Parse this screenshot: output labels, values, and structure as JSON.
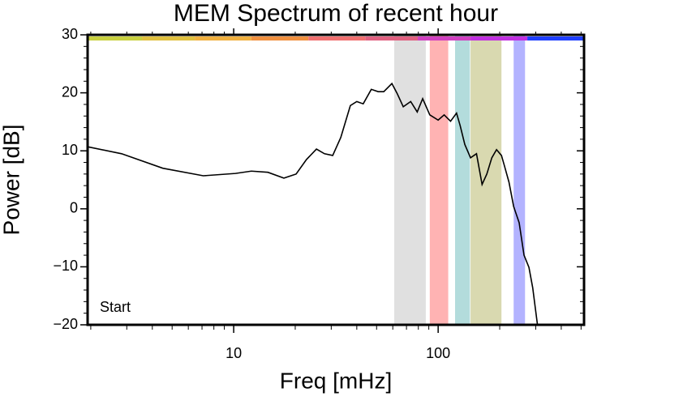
{
  "chart_data": {
    "type": "line",
    "title": "MEM Spectrum of recent hour",
    "x_label": "Freq [mHz]",
    "y_label": "Power [dB]",
    "annotation": "Start",
    "xscale": "log",
    "xlim": [
      1.93,
      517
    ],
    "ylim": [
      -20,
      30
    ],
    "xticks": [
      10,
      100
    ],
    "xticks_minor": [
      2,
      3,
      4,
      5,
      6,
      7,
      8,
      9,
      20,
      30,
      40,
      50,
      60,
      70,
      80,
      90,
      200,
      300,
      400,
      500
    ],
    "yticks": [
      {
        "value": -20,
        "label": "−20"
      },
      {
        "value": -10,
        "label": "−10"
      },
      0,
      10,
      20,
      30
    ],
    "yticks_minor": [
      -18,
      -16,
      -14,
      -12,
      -8,
      -6,
      -4,
      -2,
      2,
      4,
      6,
      8,
      12,
      14,
      16,
      18,
      22,
      24,
      26,
      28
    ],
    "bands": [
      {
        "from": 61,
        "to": 87,
        "color": "#e0e0e0"
      },
      {
        "from": 91,
        "to": 112,
        "color": "#ffb3b3"
      },
      {
        "from": 121,
        "to": 143,
        "color": "#b3dcdc"
      },
      {
        "from": 144,
        "to": 204,
        "color": "#d9d9b0"
      },
      {
        "from": 234,
        "to": 266,
        "color": "#b3b3ff"
      }
    ],
    "color_bar": [
      {
        "from": 1.93,
        "to": 3.56,
        "color": "#c8d040"
      },
      {
        "from": 3.56,
        "to": 6.45,
        "color": "#e0c040"
      },
      {
        "from": 6.45,
        "to": 12.2,
        "color": "#f0b040"
      },
      {
        "from": 12.2,
        "to": 23.2,
        "color": "#f09040"
      },
      {
        "from": 23.2,
        "to": 44,
        "color": "#f07070"
      },
      {
        "from": 44,
        "to": 79.5,
        "color": "#e06080"
      },
      {
        "from": 79.5,
        "to": 144,
        "color": "#d040c0"
      },
      {
        "from": 144,
        "to": 273,
        "color": "#c030e0"
      },
      {
        "from": 273,
        "to": 517,
        "color": "#2040ff"
      }
    ],
    "x": [
      1.93,
      2.83,
      4.5,
      7.1,
      10.2,
      12.2,
      14.7,
      17.6,
      20.2,
      22.7,
      25.4,
      27.8,
      30.5,
      33.4,
      37.2,
      40,
      43,
      47.1,
      50.9,
      54.2,
      59.4,
      63,
      67.5,
      73.4,
      79,
      84,
      91,
      100,
      107,
      115,
      123,
      128,
      135,
      144,
      154,
      164,
      173,
      183,
      193,
      204,
      211,
      222,
      234,
      249,
      263,
      278,
      290,
      306
    ],
    "series": [
      {
        "name": "MEM",
        "color": "#000000",
        "values": [
          10.7,
          9.5,
          7.0,
          5.7,
          6.1,
          6.5,
          6.3,
          5.3,
          6.0,
          8.5,
          10.3,
          9.5,
          9.2,
          12.3,
          17.8,
          18.5,
          18.1,
          20.6,
          20.2,
          20.2,
          21.6,
          19.9,
          17.6,
          18.5,
          16.7,
          19.0,
          16.2,
          15.3,
          16.2,
          15.1,
          16.5,
          14.4,
          11.1,
          8.8,
          9.5,
          4.2,
          6.0,
          8.8,
          10.2,
          9.2,
          7.4,
          4.6,
          0.4,
          -2.4,
          -8.0,
          -10.1,
          -13.6,
          -20
        ]
      }
    ]
  }
}
